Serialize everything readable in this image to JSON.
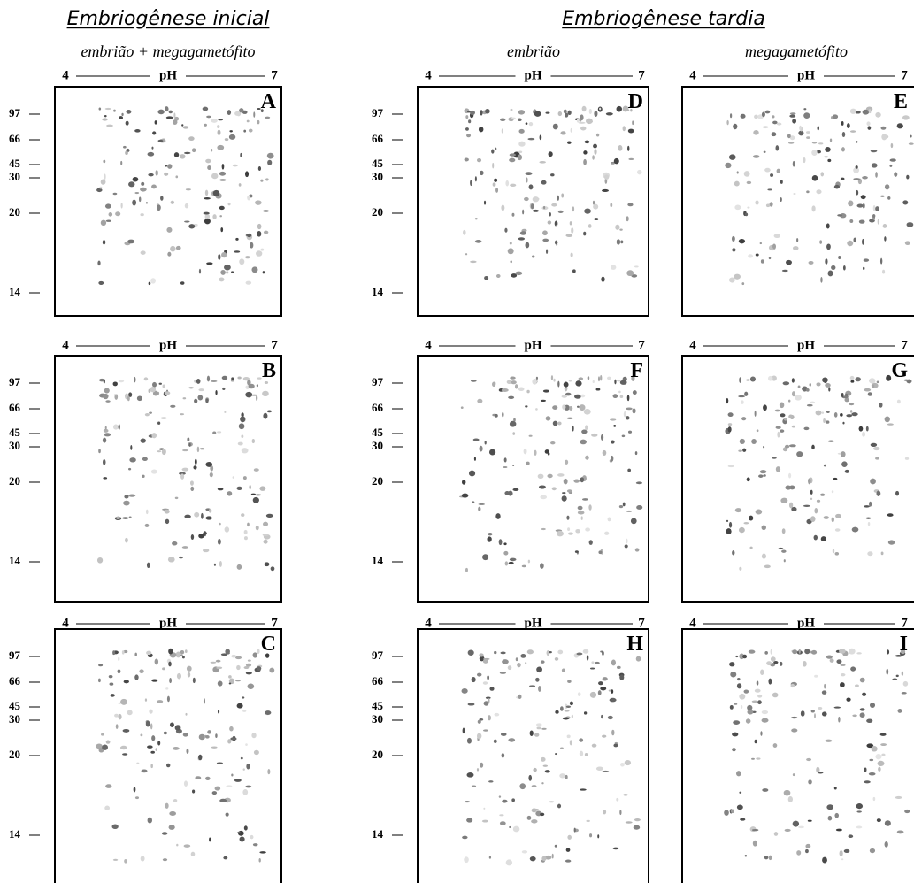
{
  "header": {
    "left_title": "Embriogênese inicial",
    "right_title": "Embriogênese tardia",
    "subtitles": [
      "embrião + megagametófito",
      "embrião",
      "megagametófito"
    ]
  },
  "panels": [
    {
      "letter": "A",
      "ph": {
        "left": "4",
        "label": "pH",
        "right": "7"
      },
      "markers": [
        "97",
        "66",
        "45",
        "30",
        "20",
        "14"
      ]
    },
    {
      "letter": "B",
      "ph": {
        "left": "4",
        "label": "pH",
        "right": "7"
      },
      "markers": [
        "97",
        "66",
        "45",
        "30",
        "20",
        "14"
      ]
    },
    {
      "letter": "C",
      "ph": {
        "left": "4",
        "label": "pH",
        "right": "7"
      },
      "markers": [
        "97",
        "66",
        "45",
        "30",
        "20",
        "14"
      ]
    },
    {
      "letter": "D",
      "ph": {
        "left": "4",
        "label": "pH",
        "right": "7"
      },
      "markers": [
        "97",
        "66",
        "45",
        "30",
        "20",
        "14"
      ]
    },
    {
      "letter": "F",
      "ph": {
        "left": "4",
        "label": "pH",
        "right": "7"
      },
      "markers": [
        "97",
        "66",
        "45",
        "30",
        "20",
        "14"
      ]
    },
    {
      "letter": "H",
      "ph": {
        "left": "4",
        "label": "pH",
        "right": "7"
      },
      "markers": [
        "97",
        "66",
        "45",
        "30",
        "20",
        "14"
      ]
    },
    {
      "letter": "E",
      "ph": {
        "left": "4",
        "label": "pH",
        "right": "7"
      }
    },
    {
      "letter": "G",
      "ph": {
        "left": "4",
        "label": "pH",
        "right": "7"
      }
    },
    {
      "letter": "I",
      "ph": {
        "left": "4",
        "label": "pH",
        "right": "7"
      }
    }
  ]
}
